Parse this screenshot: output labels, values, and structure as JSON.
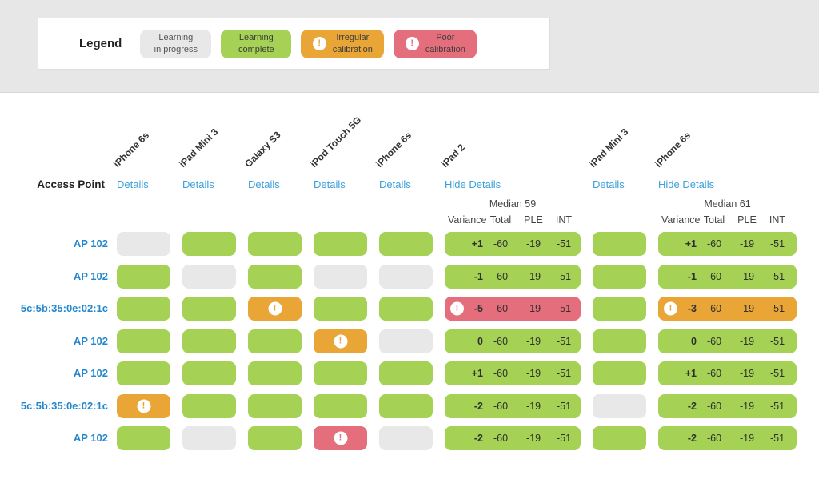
{
  "alert_glyph": "!",
  "status_colors": {
    "in_progress": "#e8e8e8",
    "complete": "#a5d155",
    "irregular": "#e9a636",
    "poor": "#e56e7d",
    "link": "#3da0da",
    "row_label": "#2287cf"
  },
  "legend": {
    "title": "Legend",
    "items": [
      {
        "line1": "Learning",
        "line2": "in progress",
        "status": "in-progress",
        "has_icon": false
      },
      {
        "line1": "Learning",
        "line2": "complete",
        "status": "complete",
        "has_icon": false
      },
      {
        "line1": "Irregular",
        "line2": "calibration",
        "status": "irregular",
        "has_icon": true
      },
      {
        "line1": "Poor",
        "line2": "calibration",
        "status": "poor",
        "has_icon": true
      }
    ]
  },
  "table": {
    "row_header": "Access Point",
    "columns": [
      {
        "device": "iPhone 6s",
        "link": "Details",
        "expanded": false
      },
      {
        "device": "iPad Mini 3",
        "link": "Details",
        "expanded": false
      },
      {
        "device": "Galaxy S3",
        "link": "Details",
        "expanded": false
      },
      {
        "device": "iPod Touch 5G",
        "link": "Details",
        "expanded": false
      },
      {
        "device": "iPhone 6s",
        "link": "Details",
        "expanded": false
      },
      {
        "device": "iPad 2",
        "link": "Hide Details",
        "expanded": true,
        "median": "Median 59",
        "stat_headers": [
          "Variance",
          "Total",
          "PLE",
          "INT"
        ]
      },
      {
        "device": "iPad Mini 3",
        "link": "Details",
        "expanded": false
      },
      {
        "device": "iPhone 6s",
        "link": "Hide Details",
        "expanded": true,
        "median": "Median 61",
        "stat_headers": [
          "Variance",
          "Total",
          "PLE",
          "INT"
        ]
      }
    ],
    "rows": [
      {
        "label": "AP 102",
        "cells": [
          {
            "status": "in-progress"
          },
          {
            "status": "complete"
          },
          {
            "status": "complete"
          },
          {
            "status": "complete"
          },
          {
            "status": "complete"
          },
          {
            "status": "complete",
            "values": [
              "+1",
              "-60",
              "-19",
              "-51"
            ]
          },
          {
            "status": "complete"
          },
          {
            "status": "complete",
            "values": [
              "+1",
              "-60",
              "-19",
              "-51"
            ]
          }
        ]
      },
      {
        "label": "AP 102",
        "cells": [
          {
            "status": "complete"
          },
          {
            "status": "in-progress"
          },
          {
            "status": "complete"
          },
          {
            "status": "in-progress"
          },
          {
            "status": "in-progress"
          },
          {
            "status": "complete",
            "values": [
              "-1",
              "-60",
              "-19",
              "-51"
            ]
          },
          {
            "status": "complete"
          },
          {
            "status": "complete",
            "values": [
              "-1",
              "-60",
              "-19",
              "-51"
            ]
          }
        ]
      },
      {
        "label": "5c:5b:35:0e:02:1c",
        "cells": [
          {
            "status": "complete"
          },
          {
            "status": "complete"
          },
          {
            "status": "irregular"
          },
          {
            "status": "complete"
          },
          {
            "status": "complete"
          },
          {
            "status": "poor",
            "values": [
              "-5",
              "-60",
              "-19",
              "-51"
            ]
          },
          {
            "status": "complete"
          },
          {
            "status": "irregular",
            "values": [
              "-3",
              "-60",
              "-19",
              "-51"
            ]
          }
        ]
      },
      {
        "label": "AP 102",
        "cells": [
          {
            "status": "complete"
          },
          {
            "status": "complete"
          },
          {
            "status": "complete"
          },
          {
            "status": "irregular"
          },
          {
            "status": "in-progress"
          },
          {
            "status": "complete",
            "values": [
              "0",
              "-60",
              "-19",
              "-51"
            ]
          },
          {
            "status": "complete"
          },
          {
            "status": "complete",
            "values": [
              "0",
              "-60",
              "-19",
              "-51"
            ]
          }
        ]
      },
      {
        "label": "AP 102",
        "cells": [
          {
            "status": "complete"
          },
          {
            "status": "complete"
          },
          {
            "status": "complete"
          },
          {
            "status": "complete"
          },
          {
            "status": "complete"
          },
          {
            "status": "complete",
            "values": [
              "+1",
              "-60",
              "-19",
              "-51"
            ]
          },
          {
            "status": "complete"
          },
          {
            "status": "complete",
            "values": [
              "+1",
              "-60",
              "-19",
              "-51"
            ]
          }
        ]
      },
      {
        "label": "5c:5b:35:0e:02:1c",
        "cells": [
          {
            "status": "irregular"
          },
          {
            "status": "complete"
          },
          {
            "status": "complete"
          },
          {
            "status": "complete"
          },
          {
            "status": "complete"
          },
          {
            "status": "complete",
            "values": [
              "-2",
              "-60",
              "-19",
              "-51"
            ]
          },
          {
            "status": "in-progress"
          },
          {
            "status": "complete",
            "values": [
              "-2",
              "-60",
              "-19",
              "-51"
            ]
          }
        ]
      },
      {
        "label": "AP 102",
        "cells": [
          {
            "status": "complete"
          },
          {
            "status": "in-progress"
          },
          {
            "status": "complete"
          },
          {
            "status": "poor"
          },
          {
            "status": "in-progress"
          },
          {
            "status": "complete",
            "values": [
              "-2",
              "-60",
              "-19",
              "-51"
            ]
          },
          {
            "status": "complete"
          },
          {
            "status": "complete",
            "values": [
              "-2",
              "-60",
              "-19",
              "-51"
            ]
          }
        ]
      }
    ]
  }
}
